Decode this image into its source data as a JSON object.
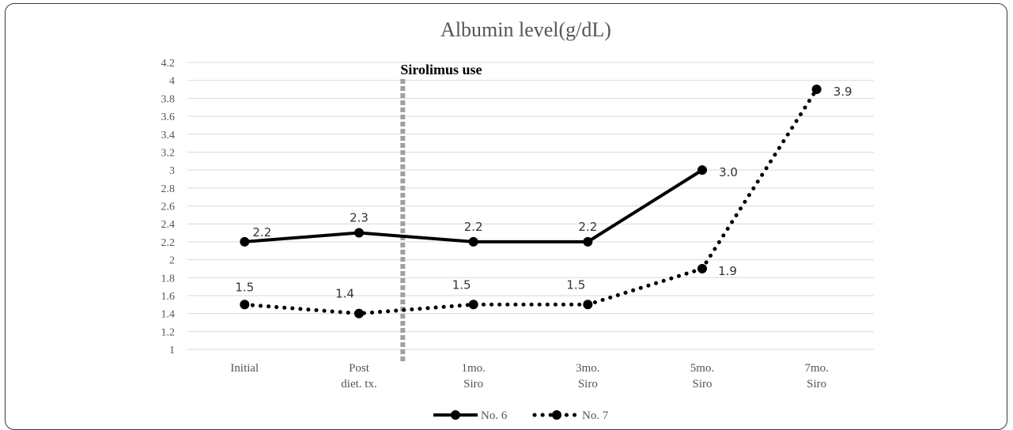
{
  "chart_data": {
    "type": "line",
    "title": "Albumin level(g/dL)",
    "categories": [
      "Initial",
      "Post diet. tx.",
      "1mo. Siro",
      "3mo. Siro",
      "5mo. Siro",
      "7mo. Siro"
    ],
    "category_lines": [
      [
        "Initial"
      ],
      [
        "Post",
        "diet. tx."
      ],
      [
        "1mo.",
        "Siro"
      ],
      [
        "3mo.",
        "Siro"
      ],
      [
        "5mo.",
        "Siro"
      ],
      [
        "7mo.",
        "Siro"
      ]
    ],
    "ylim": [
      1,
      4.2
    ],
    "yticks": [
      "1",
      "1.2",
      "1.4",
      "1.6",
      "1.8",
      "2",
      "2.2",
      "2.4",
      "2.6",
      "2.8",
      "3",
      "3.2",
      "3.4",
      "3.6",
      "3.8",
      "4",
      "4.2"
    ],
    "grid": true,
    "legend_position": "bottom",
    "series": [
      {
        "name": "No. 6",
        "style": "solid",
        "color": "#000000",
        "values": [
          2.2,
          2.3,
          2.2,
          2.2,
          3.0,
          null
        ],
        "labels": [
          "2.2",
          "2.3",
          "2.2",
          "2.2",
          "3.0",
          null
        ]
      },
      {
        "name": "No. 7",
        "style": "dotted",
        "color": "#000000",
        "values": [
          1.5,
          1.4,
          1.5,
          1.5,
          1.9,
          3.9
        ],
        "labels": [
          "1.5",
          "1.4",
          "1.5",
          "1.5",
          "1.9",
          "3.9"
        ]
      }
    ],
    "annotation": {
      "text": "Sirolimus use",
      "between": [
        "Post diet. tx.",
        "1mo. Siro"
      ],
      "color": "#a0a0a0"
    }
  }
}
